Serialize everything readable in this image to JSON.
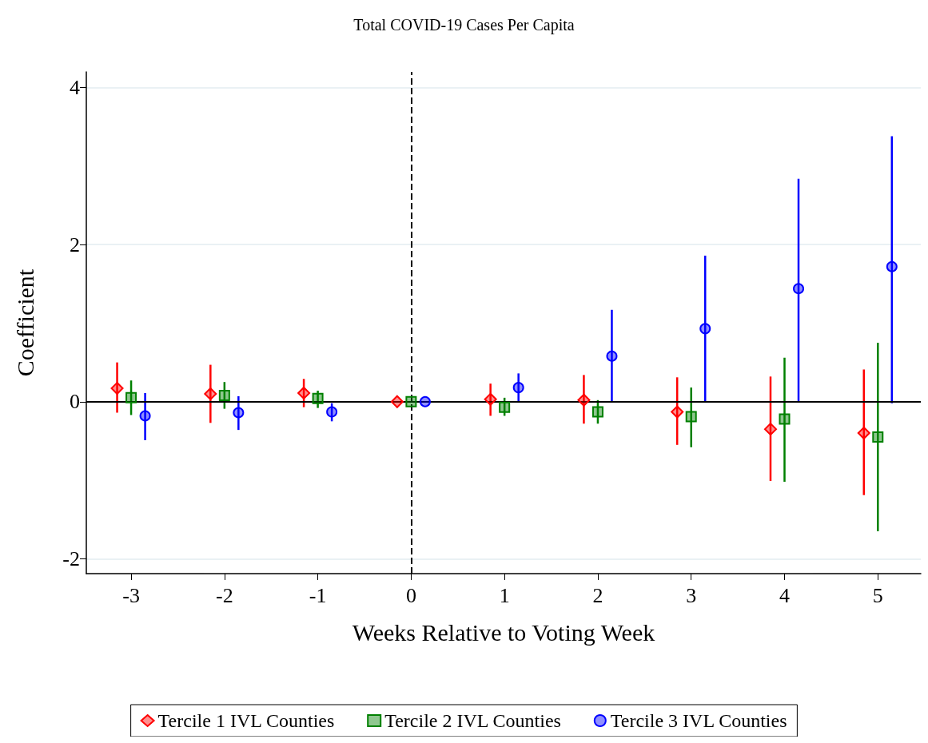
{
  "chart_data": {
    "type": "scatter",
    "title": "Total COVID-19 Cases Per Capita",
    "xlabel": "Weeks Relative to Voting Week",
    "ylabel": "Coefficient",
    "xlim": [
      -3.48,
      5.46
    ],
    "xticks": [
      -3,
      -2,
      -1,
      0,
      1,
      2,
      3,
      4,
      5
    ],
    "ylim": [
      -2.19,
      4.2
    ],
    "yticks": [
      -2,
      0,
      2,
      4
    ],
    "grid": "y",
    "legend": "bottom",
    "ref_lines": [
      {
        "axis": "x",
        "value": 0,
        "line_style": "dashed",
        "color": "#000000"
      },
      {
        "axis": "y",
        "value": 0,
        "line_style": "solid",
        "color": "#000000"
      }
    ],
    "series": [
      {
        "name": "Tercile 1 IVL Counties",
        "color": "#ff0000",
        "marker": "diamond",
        "x": [
          -3.15,
          -2.15,
          -1.15,
          -0.15,
          0.85,
          1.85,
          2.85,
          3.85,
          4.85
        ],
        "values": [
          0.17,
          0.1,
          0.11,
          0,
          0.03,
          0.02,
          -0.13,
          -0.35,
          -0.4
        ],
        "errors": [
          [
            -0.14,
            0.5
          ],
          [
            -0.27,
            0.47
          ],
          [
            -0.07,
            0.29
          ],
          null,
          [
            -0.18,
            0.23
          ],
          [
            -0.28,
            0.34
          ],
          [
            -0.55,
            0.31
          ],
          [
            -1.01,
            0.32
          ],
          [
            -1.19,
            0.41
          ]
        ]
      },
      {
        "name": "Tercile 2 IVL Counties",
        "color": "#008000",
        "marker": "square",
        "x": [
          -3,
          -2,
          -1,
          0,
          1,
          2,
          3,
          4,
          5
        ],
        "values": [
          0.05,
          0.08,
          0.04,
          0,
          -0.07,
          -0.13,
          -0.19,
          -0.22,
          -0.45
        ],
        "errors": [
          [
            -0.17,
            0.27
          ],
          [
            -0.09,
            0.25
          ],
          [
            -0.08,
            0.14
          ],
          null,
          [
            -0.18,
            0.05
          ],
          [
            -0.28,
            0.02
          ],
          [
            -0.58,
            0.18
          ],
          [
            -1.02,
            0.56
          ],
          [
            -1.65,
            0.75
          ]
        ]
      },
      {
        "name": "Tercile 3 IVL Counties",
        "color": "#0000ff",
        "marker": "circle",
        "x": [
          -2.85,
          -1.85,
          -0.85,
          0.15,
          1.15,
          2.15,
          3.15,
          4.15,
          5.15
        ],
        "values": [
          -0.18,
          -0.14,
          -0.13,
          0,
          0.18,
          0.58,
          0.93,
          1.44,
          1.72
        ],
        "errors": [
          [
            -0.49,
            0.11
          ],
          [
            -0.36,
            0.07
          ],
          [
            -0.25,
            -0.02
          ],
          null,
          [
            0,
            0.36
          ],
          [
            0,
            1.17
          ],
          [
            0,
            1.86
          ],
          [
            0,
            2.84
          ],
          [
            -0.02,
            3.38
          ]
        ]
      }
    ]
  }
}
